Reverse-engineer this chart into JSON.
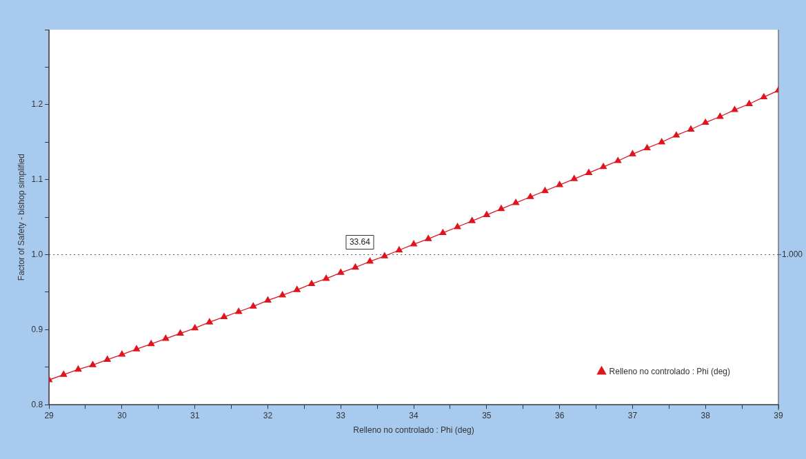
{
  "chart_data": {
    "type": "line",
    "xlabel": "Relleno no controlado : Phi (deg)",
    "ylabel": "Factor of Safety - bishop simplified",
    "x": [
      29,
      29.2,
      29.4,
      29.6,
      29.8,
      30,
      30.2,
      30.4,
      30.6,
      30.8,
      31,
      31.2,
      31.4,
      31.6,
      31.8,
      32,
      32.2,
      32.4,
      32.6,
      32.8,
      33,
      33.2,
      33.4,
      33.6,
      33.8,
      34,
      34.2,
      34.4,
      34.6,
      34.8,
      35,
      35.2,
      35.4,
      35.6,
      35.8,
      36,
      36.2,
      36.4,
      36.6,
      36.8,
      37,
      37.2,
      37.4,
      37.6,
      37.8,
      38,
      38.2,
      38.4,
      38.6,
      38.8,
      39
    ],
    "series": [
      {
        "name": "Relleno no controlado : Phi (deg)",
        "color": "#e0141e",
        "values": [
          0.833,
          0.84,
          0.847,
          0.853,
          0.86,
          0.867,
          0.874,
          0.881,
          0.888,
          0.895,
          0.902,
          0.91,
          0.917,
          0.924,
          0.931,
          0.939,
          0.946,
          0.953,
          0.961,
          0.968,
          0.976,
          0.983,
          0.991,
          0.998,
          1.006,
          1.014,
          1.021,
          1.029,
          1.037,
          1.045,
          1.053,
          1.061,
          1.069,
          1.077,
          1.085,
          1.093,
          1.101,
          1.109,
          1.117,
          1.125,
          1.134,
          1.142,
          1.15,
          1.159,
          1.167,
          1.176,
          1.184,
          1.193,
          1.201,
          1.21,
          1.219
        ]
      }
    ],
    "xlim": [
      29,
      39
    ],
    "xticks": [
      29,
      {
        "value": 29.5,
        "label": null
      },
      30,
      {
        "value": 30.5,
        "label": null
      },
      31,
      {
        "value": 31.5,
        "label": null
      },
      32,
      {
        "value": 32.5,
        "label": null
      },
      33,
      {
        "value": 33.5,
        "label": null
      },
      34,
      {
        "value": 34.5,
        "label": null
      },
      35,
      {
        "value": 35.5,
        "label": null
      },
      36,
      {
        "value": 36.5,
        "label": null
      },
      37,
      {
        "value": 37.5,
        "label": null
      },
      38,
      {
        "value": 38.5,
        "label": null
      },
      39
    ],
    "ylim": [
      0.8,
      1.3
    ],
    "yticks": [
      0.8,
      {
        "value": 0.85,
        "label": null
      },
      0.9,
      {
        "value": 0.95,
        "label": null
      },
      {
        "value": 1,
        "label": "1.0"
      },
      {
        "value": 1.05,
        "label": null
      },
      1.1,
      {
        "value": 1.15,
        "label": null
      },
      1.2,
      {
        "value": 1.25,
        "label": null
      },
      {
        "value": 1.3,
        "label": null
      }
    ],
    "ref_lines": [
      {
        "axis": "y",
        "value": 1,
        "label": "1.000",
        "color": "#555555",
        "line_style": "dotted"
      }
    ],
    "annotations": [
      {
        "text": "33.64",
        "x": 33.64,
        "y": 1
      }
    ],
    "marker": "triangle",
    "legend": "bottom right"
  }
}
